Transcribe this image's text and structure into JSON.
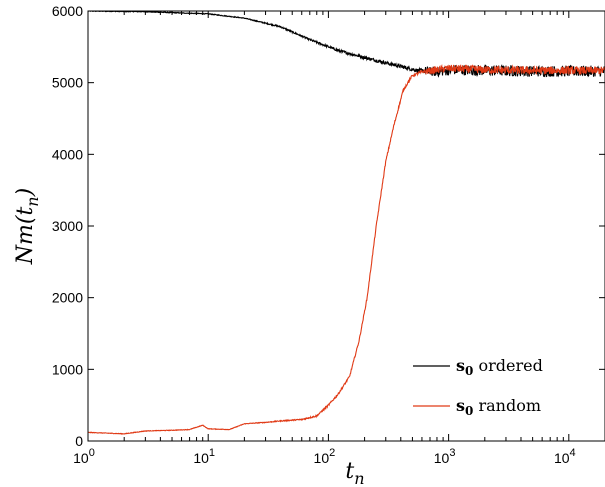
{
  "chart_data": {
    "type": "line",
    "xlabel": "t_n",
    "ylabel": "Nm(t_n)",
    "xscale": "log",
    "xlim": [
      1,
      20000
    ],
    "ylim": [
      0,
      6000
    ],
    "yticks": [
      0,
      1000,
      2000,
      3000,
      4000,
      5000,
      6000
    ],
    "xticks": [
      {
        "base": "10",
        "exp": "0"
      },
      {
        "base": "10",
        "exp": "1"
      },
      {
        "base": "10",
        "exp": "2"
      },
      {
        "base": "10",
        "exp": "3"
      },
      {
        "base": "10",
        "exp": "4"
      }
    ],
    "grid": false,
    "legend_position": "bottom-right",
    "series": [
      {
        "name": "s0 ordered",
        "legend_bold": "s",
        "legend_sub": "0",
        "legend_rest": "ordered",
        "color": "#000000",
        "noise": 35,
        "points": [
          [
            1,
            6000
          ],
          [
            3,
            5990
          ],
          [
            10,
            5960
          ],
          [
            20,
            5900
          ],
          [
            40,
            5780
          ],
          [
            70,
            5600
          ],
          [
            120,
            5450
          ],
          [
            200,
            5350
          ],
          [
            350,
            5250
          ],
          [
            550,
            5170
          ],
          [
            800,
            5150
          ],
          [
            1100,
            5180
          ],
          [
            2000,
            5170
          ],
          [
            5000,
            5160
          ],
          [
            10000,
            5160
          ],
          [
            20000,
            5160
          ]
        ]
      },
      {
        "name": "s0 random",
        "legend_bold": "s",
        "legend_sub": "0",
        "legend_rest": "random",
        "color": "#e03a16",
        "noise": 25,
        "points": [
          [
            1,
            120
          ],
          [
            2,
            100
          ],
          [
            3,
            140
          ],
          [
            5,
            150
          ],
          [
            7,
            160
          ],
          [
            9,
            220
          ],
          [
            10,
            170
          ],
          [
            15,
            160
          ],
          [
            20,
            240
          ],
          [
            30,
            260
          ],
          [
            40,
            280
          ],
          [
            60,
            300
          ],
          [
            80,
            350
          ],
          [
            100,
            500
          ],
          [
            120,
            650
          ],
          [
            150,
            900
          ],
          [
            180,
            1400
          ],
          [
            210,
            2000
          ],
          [
            250,
            3000
          ],
          [
            300,
            3900
          ],
          [
            350,
            4400
          ],
          [
            420,
            4900
          ],
          [
            500,
            5100
          ],
          [
            600,
            5150
          ],
          [
            1000,
            5200
          ],
          [
            2000,
            5180
          ],
          [
            5000,
            5170
          ],
          [
            10000,
            5170
          ],
          [
            20000,
            5170
          ]
        ]
      }
    ]
  }
}
